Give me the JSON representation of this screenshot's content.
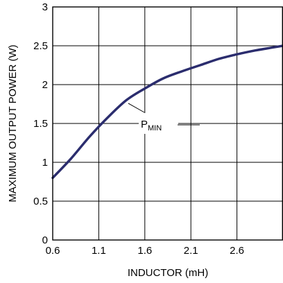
{
  "chart_data": {
    "type": "line",
    "title": "",
    "xlabel": "INDUCTOR (mH)",
    "ylabel": "MAXIMUM OUTPUT POWER (W)",
    "xlim": [
      0.6,
      3.1
    ],
    "ylim": [
      0,
      3
    ],
    "grid": true,
    "x_ticks": [
      "0.6",
      "1.1",
      "1.6",
      "2.1",
      "2.6"
    ],
    "x_tick_values": [
      0.6,
      1.1,
      1.6,
      2.1,
      2.6
    ],
    "y_ticks": [
      "0",
      "0.5",
      "1",
      "1.5",
      "2",
      "2.5",
      "3"
    ],
    "y_tick_values": [
      0,
      0.5,
      1,
      1.5,
      2,
      2.5,
      3
    ],
    "series": [
      {
        "name": "",
        "color": "#2b2d6e",
        "x": [
          0.6,
          0.8,
          1.0,
          1.2,
          1.4,
          1.6,
          1.8,
          2.0,
          2.2,
          2.4,
          2.6,
          2.8,
          3.0,
          3.1
        ],
        "y": [
          0.8,
          1.05,
          1.33,
          1.58,
          1.8,
          1.95,
          2.08,
          2.17,
          2.25,
          2.33,
          2.39,
          2.44,
          2.48,
          2.5
        ]
      }
    ],
    "annotation": {
      "main": "P",
      "sub": "MIN",
      "x": 1.42,
      "y": 1.76
    }
  }
}
